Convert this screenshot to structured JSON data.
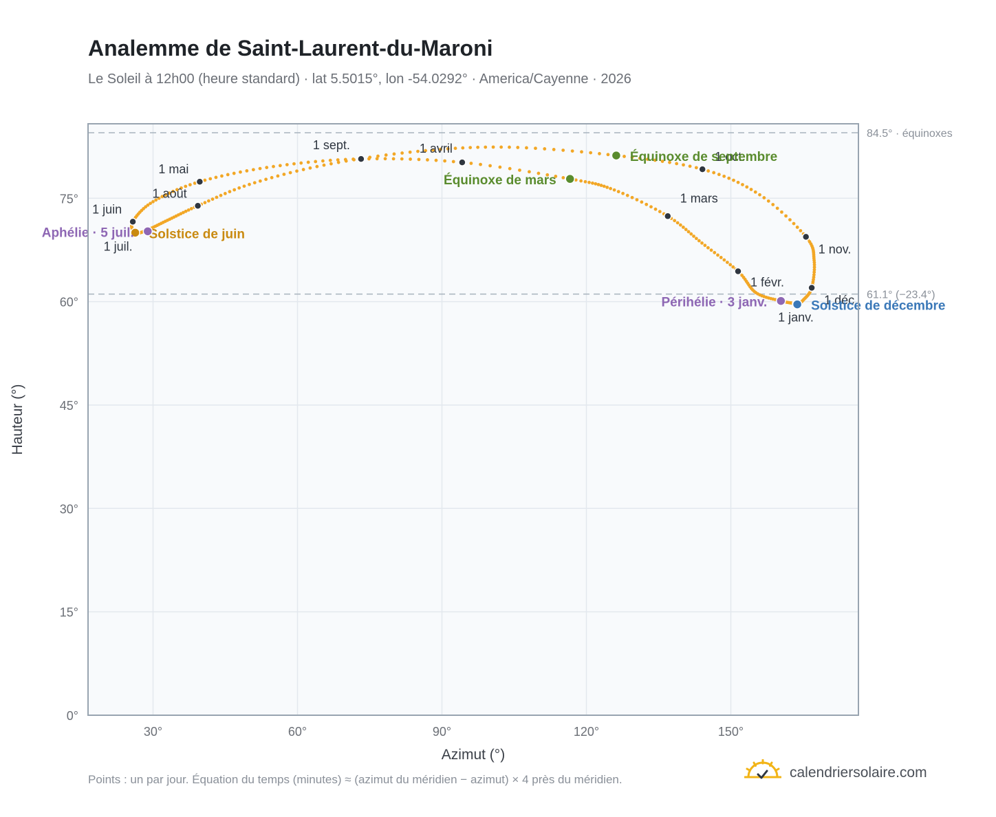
{
  "title": "Analemme de Saint-Laurent-du-Maroni",
  "subtitle": "Le Soleil à 12h00 (heure standard) · lat 5.5015°, lon -54.0292° · America/Cayenne · 2026",
  "footnote": "Points : un par jour. Équation du temps (minutes) ≈ (azimut du méridien − azimut) × 4 près du méridien.",
  "brand": {
    "name": "calendriersolaire.com",
    "icon": "sun-logo-icon"
  },
  "colors": {
    "curve": "#f2a726",
    "month_dot": "#2f3640",
    "equinox": "#5a8c2e",
    "june_solstice": "#c98a10",
    "december_solstice": "#3a78b8",
    "apsis": "#8e67b4",
    "ref_line": "#a7b3bd",
    "plot_bg": "#f8fafc",
    "grid": "#e3e8ee",
    "frame": "#98a4b0"
  },
  "chart_data": {
    "type": "scatter",
    "title": "Analemme de Saint-Laurent-du-Maroni",
    "xlabel": "Azimut (°)",
    "ylabel": "Hauteur (°)",
    "xlim": [
      16.5,
      176.5
    ],
    "ylim": [
      0,
      85.8
    ],
    "x_ticks": [
      30,
      60,
      90,
      120,
      150
    ],
    "x_tick_labels": [
      "30°",
      "60°",
      "90°",
      "120°",
      "150°"
    ],
    "y_ticks": [
      0,
      15,
      30,
      45,
      60,
      75
    ],
    "y_tick_labels": [
      "0°",
      "15°",
      "30°",
      "45°",
      "60°",
      "75°"
    ],
    "grid": true,
    "reference_lines": [
      {
        "y": 84.5,
        "label": "84.5° · équinoxes"
      },
      {
        "y": 61.1,
        "label": "61.1° (−23.4°)"
      }
    ],
    "series": [
      {
        "points_per": "day",
        "points": [
          [
            163.8,
            59.6
          ],
          [
            163.5,
            59.7
          ],
          [
            160.4,
            60.1
          ],
          [
            155.2,
            61.3
          ],
          [
            151.5,
            64.4
          ],
          [
            144.0,
            68.5
          ],
          [
            136.9,
            72.4
          ],
          [
            125.8,
            76.2
          ],
          [
            116.6,
            77.8
          ],
          [
            94.2,
            80.2
          ],
          [
            73.2,
            80.7
          ],
          [
            55.0,
            79.6
          ],
          [
            39.7,
            77.4
          ],
          [
            30.0,
            74.5
          ],
          [
            25.8,
            71.6
          ],
          [
            26.3,
            70.0
          ],
          [
            28.5,
            70.3
          ],
          [
            33.0,
            71.8
          ],
          [
            39.3,
            73.9
          ],
          [
            50.0,
            77.0
          ],
          [
            65.5,
            79.8
          ],
          [
            85.0,
            81.8
          ],
          [
            104.0,
            82.4
          ],
          [
            126.2,
            81.2
          ],
          [
            144.1,
            79.2
          ],
          [
            156.0,
            75.5
          ],
          [
            165.6,
            69.4
          ],
          [
            167.3,
            66.0
          ],
          [
            166.8,
            62.0
          ],
          [
            165.0,
            60.2
          ],
          [
            163.8,
            59.6
          ]
        ]
      }
    ],
    "month_markers": [
      {
        "label": "1 janv.",
        "x": 163.5,
        "y": 59.7
      },
      {
        "label": "1 févr.",
        "x": 151.5,
        "y": 64.4
      },
      {
        "label": "1 mars",
        "x": 136.9,
        "y": 72.4
      },
      {
        "label": "1 avril",
        "x": 94.2,
        "y": 80.2
      },
      {
        "label": "1 mai",
        "x": 39.7,
        "y": 77.4
      },
      {
        "label": "1 juin",
        "x": 25.8,
        "y": 71.6
      },
      {
        "label": "1 juil.",
        "x": 26.3,
        "y": 70.0
      },
      {
        "label": "1 août",
        "x": 39.3,
        "y": 73.9
      },
      {
        "label": "1 sept.",
        "x": 73.2,
        "y": 80.7
      },
      {
        "label": "1 oct.",
        "x": 144.1,
        "y": 79.2
      },
      {
        "label": "1 nov.",
        "x": 165.6,
        "y": 69.4
      },
      {
        "label": "1 déc.",
        "x": 166.8,
        "y": 62.0
      }
    ],
    "events": [
      {
        "label": "Équinoxe de mars",
        "x": 116.6,
        "y": 77.8,
        "color_key": "equinox"
      },
      {
        "label": "Équinoxe de septembre",
        "x": 126.2,
        "y": 81.2,
        "color_key": "equinox"
      },
      {
        "label": "Solstice de juin",
        "x": 26.3,
        "y": 70.0,
        "color_key": "june_solstice"
      },
      {
        "label": "Solstice de décembre",
        "x": 163.8,
        "y": 59.6,
        "color_key": "december_solstice"
      },
      {
        "label": "Aphélie · 5 juil.",
        "x": 28.9,
        "y": 70.2,
        "color_key": "apsis"
      },
      {
        "label": "Périhélie · 3 janv.",
        "x": 160.4,
        "y": 60.1,
        "color_key": "apsis"
      }
    ]
  }
}
